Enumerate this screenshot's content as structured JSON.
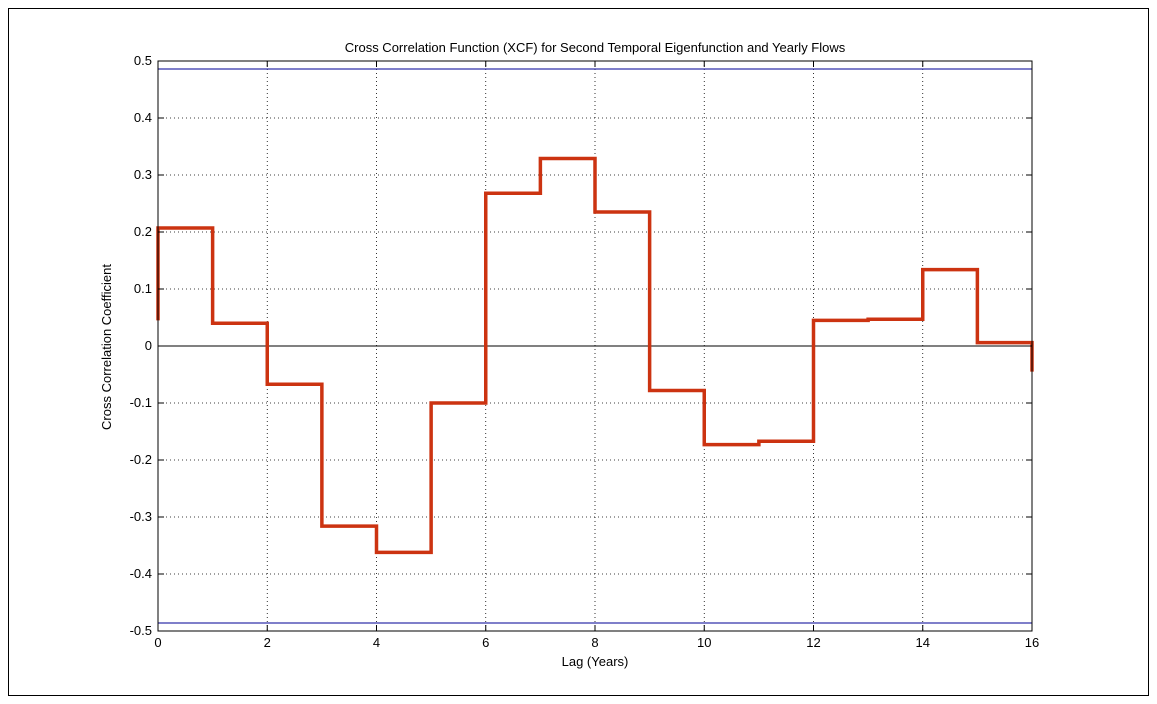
{
  "chart_data": {
    "type": "line",
    "step": "post",
    "title": "Cross Correlation Function (XCF) for Second Temporal Eigenfunction and Yearly Flows",
    "xlabel": "Lag (Years)",
    "ylabel": "Cross Correlation Coefficient",
    "xlim": [
      0,
      16
    ],
    "ylim": [
      -0.5,
      0.5
    ],
    "xticks": [
      0,
      2,
      4,
      6,
      8,
      10,
      12,
      14,
      16
    ],
    "yticks": [
      -0.5,
      -0.4,
      -0.3,
      -0.2,
      -0.1,
      0,
      0.1,
      0.2,
      0.3,
      0.4,
      0.5
    ],
    "xtick_labels": [
      "0",
      "2",
      "4",
      "6",
      "8",
      "10",
      "12",
      "14",
      "16"
    ],
    "ytick_labels": [
      "-0.5",
      "-0.4",
      "-0.3",
      "-0.2",
      "-0.1",
      "0",
      "0.1",
      "0.2",
      "0.3",
      "0.4",
      "0.5"
    ],
    "grid": true,
    "series": [
      {
        "color": "#cc3311",
        "x": [
          0,
          1,
          2,
          3,
          4,
          5,
          6,
          7,
          8,
          9,
          10,
          11,
          12,
          13,
          14,
          15,
          16
        ],
        "y": [
          0.207,
          0.04,
          -0.067,
          -0.316,
          -0.362,
          -0.1,
          0.268,
          0.329,
          0.235,
          -0.078,
          -0.173,
          -0.167,
          0.045,
          0.047,
          0.134,
          0.006,
          -0.045
        ],
        "start_y": 0.045
      }
    ],
    "confidence_bounds": {
      "values": [
        0.486,
        -0.486
      ],
      "color": "#3333aa"
    },
    "zero_line": {
      "value": 0,
      "color": "#000000"
    }
  }
}
